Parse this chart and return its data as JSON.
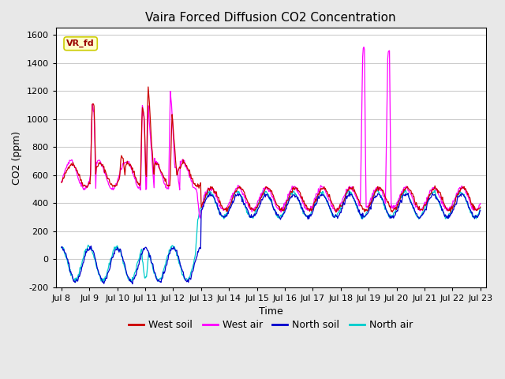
{
  "title": "Vaira Forced Diffusion CO2 Concentration",
  "xlabel": "Time",
  "ylabel": "CO2 (ppm)",
  "ylim": [
    -200,
    1650
  ],
  "yticks": [
    -200,
    0,
    200,
    400,
    600,
    800,
    1000,
    1200,
    1400,
    1600
  ],
  "legend_label": "VR_fd",
  "legend_box_facecolor": "#ffffcc",
  "legend_box_edgecolor": "#cccc00",
  "west_soil_color": "#cc0000",
  "west_air_color": "#ff00ff",
  "north_soil_color": "#0000cc",
  "north_air_color": "#00cccc",
  "background_color": "#e8e8e8",
  "plot_bg_color": "#ffffff",
  "grid_color": "#cccccc",
  "title_fontsize": 11,
  "axis_fontsize": 9,
  "tick_fontsize": 8,
  "xtick_labels": [
    "Jul 8",
    "Jul 9",
    "Jul 10",
    "Jul 11",
    "Jul 12",
    "Jul 13",
    "Jul 14",
    "Jul 15",
    "Jul 16",
    "Jul 17",
    "Jul 18",
    "Jul 19",
    "Jul 20",
    "Jul 21",
    "Jul 22",
    "Jul 23"
  ],
  "legend_entries": [
    "West soil",
    "West air",
    "North soil",
    "North air"
  ]
}
